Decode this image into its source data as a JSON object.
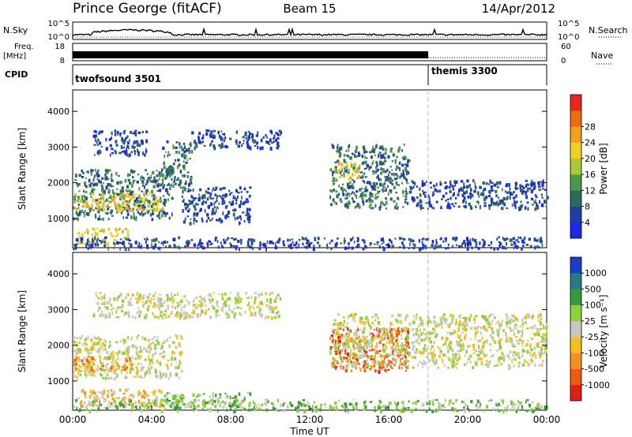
{
  "header": {
    "station": "Prince George (fitACF)",
    "beam": "Beam 15",
    "date": "14/Apr/2012"
  },
  "strip_labels": {
    "nsky": "N.Sky",
    "nsearch": "N.Search",
    "freq_line1": "Freq.",
    "freq_line2": "[MHz]",
    "nave": "Nave",
    "cpid": "CPID",
    "nsky_ticks": [
      "10^5",
      "10^0"
    ],
    "nsearch_ticks": [
      "10^5",
      "10^0"
    ],
    "freq_ticks": [
      "18",
      "8"
    ],
    "nave_ticks": [
      "60",
      "0"
    ]
  },
  "cpid_segments": [
    {
      "name": "twofsound 3501",
      "start_hour": 0,
      "end_hour": 18
    },
    {
      "name": "themis 3300",
      "start_hour": 18,
      "end_hour": 24
    }
  ],
  "chart_data": [
    {
      "type": "heatmap",
      "panel": "power",
      "xlabel": "Time UT",
      "ylabel": "Slant Range [km]",
      "x_ticks": [
        "00:00",
        "04:00",
        "08:00",
        "12:00",
        "16:00",
        "20:00",
        "00:00"
      ],
      "xlim_hours": [
        0,
        24
      ],
      "y_ticks": [
        1000,
        2000,
        3000,
        4000
      ],
      "ylim": [
        180,
        4600
      ],
      "colorbar": {
        "label": "Power [dB]",
        "ticks": [
          "4",
          "8",
          "12",
          "16",
          "20",
          "24",
          "28"
        ],
        "colors": [
          "#1a2ae8",
          "#213da6",
          "#2e6a5c",
          "#4a9a4a",
          "#a8c83a",
          "#f0d020",
          "#f2a01e",
          "#ee6a16",
          "#e4281a"
        ]
      },
      "bands": [
        {
          "t0": 0.0,
          "t1": 5.0,
          "r0": 1000,
          "r1": 2400,
          "level": 2
        },
        {
          "t0": 0.0,
          "t1": 4.5,
          "r0": 1250,
          "r1": 1750,
          "level": 5
        },
        {
          "t0": 0.2,
          "t1": 2.8,
          "r0": 300,
          "r1": 750,
          "level": 5
        },
        {
          "t0": 1.0,
          "t1": 4.0,
          "r0": 2800,
          "r1": 3500,
          "level": 1
        },
        {
          "t0": 4.5,
          "t1": 6.0,
          "r0": 1800,
          "r1": 3200,
          "level": 2
        },
        {
          "t0": 6.0,
          "t1": 10.5,
          "r0": 3000,
          "r1": 3500,
          "level": 1
        },
        {
          "t0": 5.5,
          "t1": 9.0,
          "r0": 900,
          "r1": 1900,
          "level": 1
        },
        {
          "t0": 13.0,
          "t1": 17.0,
          "r0": 1300,
          "r1": 3100,
          "level": 2
        },
        {
          "t0": 13.2,
          "t1": 14.5,
          "r0": 2100,
          "r1": 2600,
          "level": 5
        },
        {
          "t0": 17.0,
          "t1": 24.0,
          "r0": 1300,
          "r1": 2100,
          "level": 1
        },
        {
          "t0": 0.0,
          "t1": 24.0,
          "r0": 180,
          "r1": 500,
          "level": 1
        }
      ]
    },
    {
      "type": "heatmap",
      "panel": "velocity",
      "xlabel": "Time UT",
      "ylabel": "Slant Range [km]",
      "x_ticks": [
        "00:00",
        "04:00",
        "08:00",
        "12:00",
        "16:00",
        "20:00",
        "00:00"
      ],
      "xlim_hours": [
        0,
        24
      ],
      "y_ticks": [
        1000,
        2000,
        3000,
        4000
      ],
      "ylim": [
        180,
        4600
      ],
      "colorbar": {
        "label": "Velocity [m s⁻¹]",
        "ticks": [
          "1000",
          "500",
          "100",
          "25",
          "-25",
          "-100",
          "-500",
          "-1000"
        ],
        "colors": [
          "#1c3ec4",
          "#2a7a84",
          "#3a9a3a",
          "#8cd03a",
          "#c8c8c0",
          "#f4c020",
          "#f29020",
          "#ee5a14",
          "#e02018"
        ]
      },
      "bands": [
        {
          "t0": 0.0,
          "t1": 5.5,
          "r0": 1100,
          "r1": 2300,
          "level": 4
        },
        {
          "t0": 0.0,
          "t1": 3.0,
          "r0": 1300,
          "r1": 1700,
          "level": 6
        },
        {
          "t0": 0.2,
          "t1": 4.5,
          "r0": 300,
          "r1": 800,
          "level": 5
        },
        {
          "t0": 4.5,
          "t1": 9.0,
          "r0": 300,
          "r1": 700,
          "level": 3
        },
        {
          "t0": 1.0,
          "t1": 10.5,
          "r0": 2800,
          "r1": 3500,
          "level": 4
        },
        {
          "t0": 13.0,
          "t1": 17.0,
          "r0": 1300,
          "r1": 2500,
          "level": 7
        },
        {
          "t0": 13.0,
          "t1": 24.0,
          "r0": 1400,
          "r1": 2900,
          "level": 4
        },
        {
          "t0": 0.0,
          "t1": 24.0,
          "r0": 180,
          "r1": 500,
          "level": 3
        }
      ]
    }
  ]
}
